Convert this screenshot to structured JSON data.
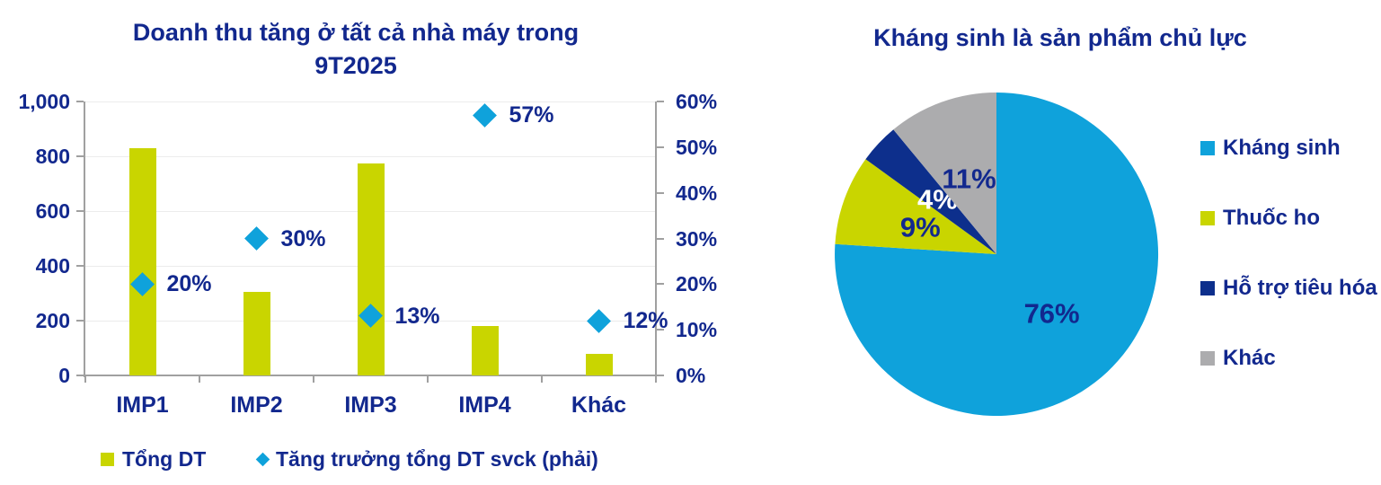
{
  "colors": {
    "text_blue": "#12288E",
    "lime": "#C9D500",
    "cyan": "#0FA2DB",
    "navy": "#0D2F8C",
    "gray": "#ACACAE",
    "gridline": "#ECECEC",
    "axis_line": "#A0A0A0",
    "white": "#FFFFFF"
  },
  "chart_data": [
    {
      "type": "bar",
      "title": "Doanh thu tăng ở tất cả nhà máy trong 9T2025",
      "title_lines": [
        "Doanh thu tăng ở tất cả nhà máy trong",
        "9T2025"
      ],
      "categories": [
        "IMP1",
        "IMP2",
        "IMP3",
        "IMP4",
        "Khác"
      ],
      "series": [
        {
          "name": "Tổng DT",
          "type": "bar",
          "axis": "left",
          "color_key": "lime",
          "values": [
            830,
            305,
            775,
            180,
            80
          ]
        },
        {
          "name": "Tăng trưởng tổng DT svck (phải)",
          "type": "scatter",
          "marker": "diamond",
          "axis": "right",
          "color_key": "cyan",
          "values_pct": [
            20,
            30,
            13,
            57,
            12
          ],
          "labels": [
            "20%",
            "30%",
            "13%",
            "57%",
            "12%"
          ]
        }
      ],
      "left_axis": {
        "min": 0,
        "max": 1000,
        "tick_labels": [
          "1,000",
          "800",
          "600",
          "400",
          "200",
          "0"
        ]
      },
      "right_axis": {
        "min_pct": 0,
        "max_pct": 60,
        "tick_labels": [
          "60%",
          "50%",
          "40%",
          "30%",
          "20%",
          "10%",
          "0%"
        ]
      },
      "grid": true,
      "legend_position": "bottom"
    },
    {
      "type": "pie",
      "title": "Kháng sinh là sản phẩm chủ lực",
      "start_angle_deg": 0,
      "direction": "clockwise",
      "legend_position": "right",
      "slices": [
        {
          "label": "Kháng sinh",
          "value_pct": 76,
          "display": "76%",
          "color_key": "cyan",
          "label_color_key": "text_blue"
        },
        {
          "label": "Thuốc ho",
          "value_pct": 9,
          "display": "9%",
          "color_key": "lime",
          "label_color_key": "text_blue"
        },
        {
          "label": "Hỗ trợ tiêu hóa",
          "value_pct": 4,
          "display": "4%",
          "color_key": "navy",
          "label_color_key": "white"
        },
        {
          "label": "Khác",
          "value_pct": 11,
          "display": "11%",
          "color_key": "gray",
          "label_color_key": "text_blue"
        }
      ]
    }
  ]
}
